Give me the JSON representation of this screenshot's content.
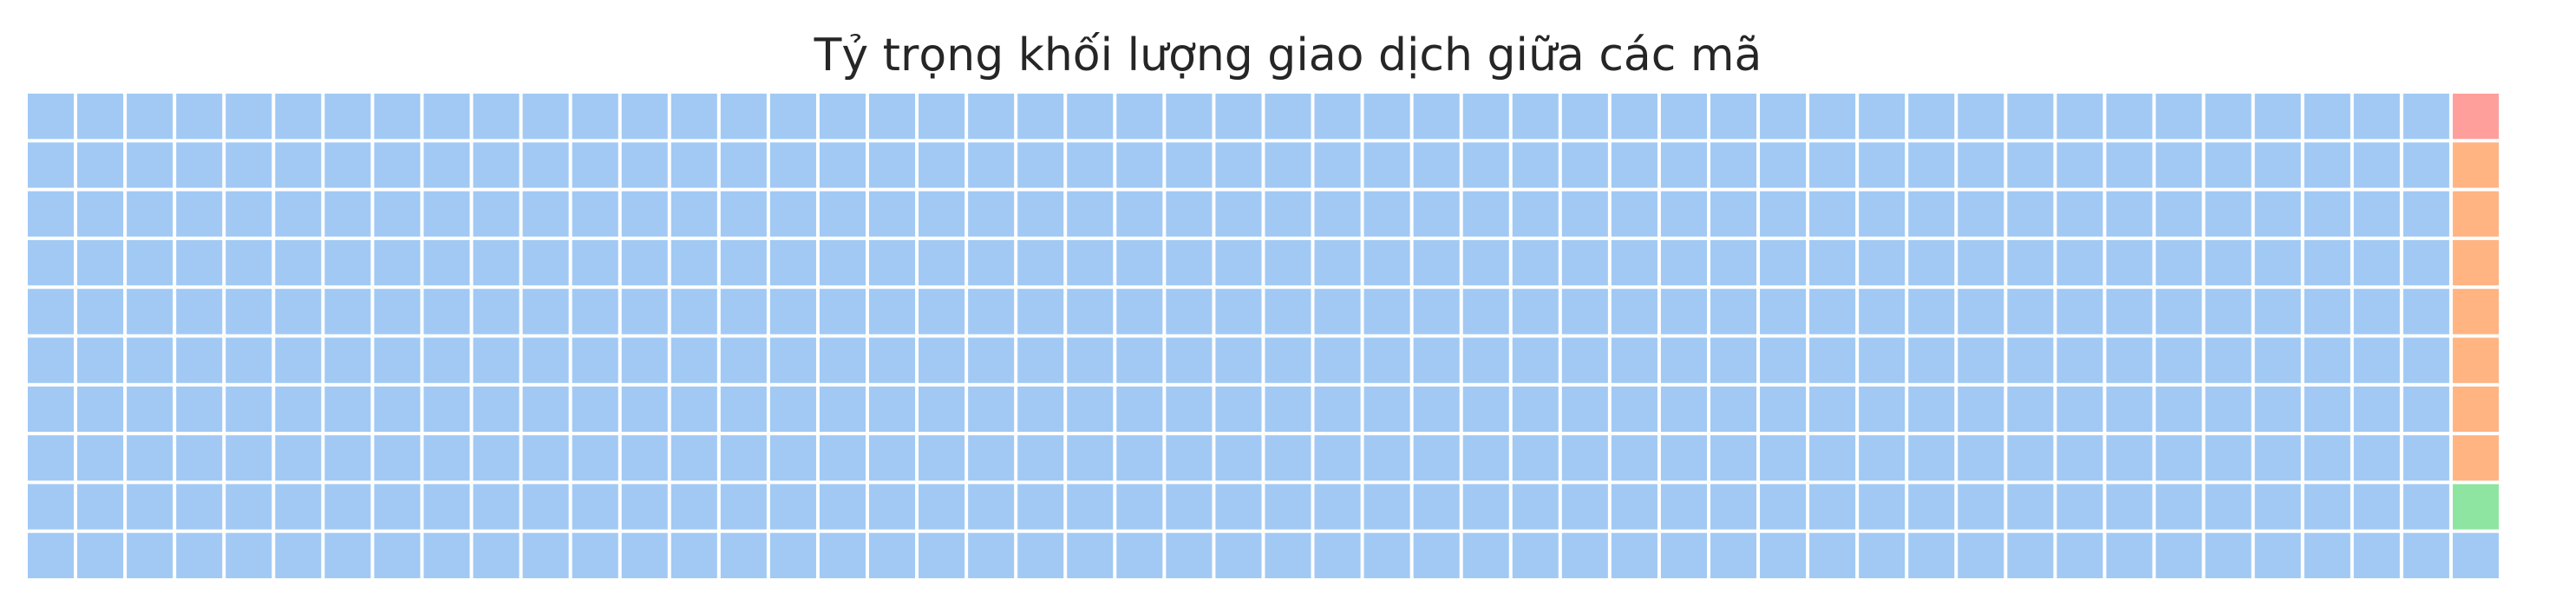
{
  "chart_data": {
    "type": "waffle",
    "title": "Tỷ trọng khối lượng giao dịch giữa các mã",
    "grid": {
      "rows": 10,
      "columns": 51,
      "total_cells": 501
    },
    "series": [
      {
        "color": "#a1c9f4",
        "cells": 491
      },
      {
        "color": "#8de5a1",
        "cells": 1
      },
      {
        "color": "#ffb482",
        "cells": 7
      },
      {
        "color": "#ff9f9b",
        "cells": 1
      }
    ],
    "xlabel": "",
    "ylabel": "",
    "legend": "none",
    "axes_visible": false
  }
}
